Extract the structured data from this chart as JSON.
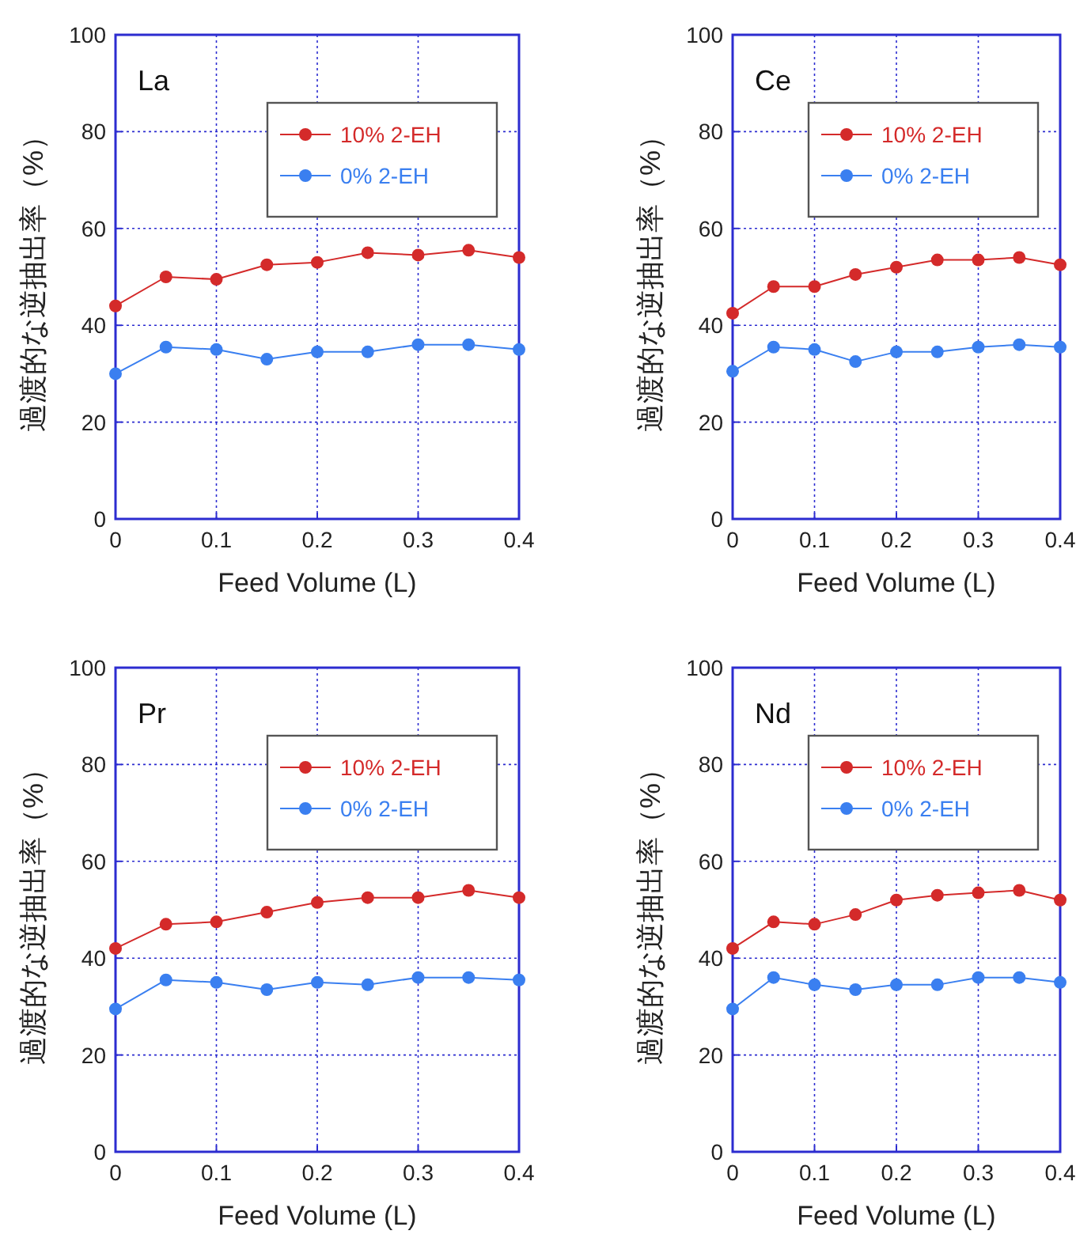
{
  "chart_data": [
    {
      "type": "line",
      "title": "La",
      "xlabel": "Feed Volume (L)",
      "ylabel": "過渡的な逆抽出率（%）",
      "x": [
        0,
        0.05,
        0.1,
        0.15,
        0.2,
        0.25,
        0.3,
        0.35,
        0.4
      ],
      "xlim": [
        0,
        0.4
      ],
      "xticks": [
        0,
        0.1,
        0.2,
        0.3,
        0.4
      ],
      "ylim": [
        0,
        100
      ],
      "yticks": [
        0,
        20,
        40,
        60,
        80,
        100
      ],
      "grid": true,
      "legend": "top right",
      "marker": "circle",
      "series": [
        {
          "name": "10% 2-EH",
          "color": "#d42a2a",
          "values": [
            44,
            50,
            49.5,
            52.5,
            53,
            55,
            54.5,
            55.5,
            54
          ]
        },
        {
          "name": "0% 2-EH",
          "color": "#3a7ff0",
          "values": [
            30,
            35.5,
            35,
            33,
            34.5,
            34.5,
            36,
            36,
            35
          ]
        }
      ]
    },
    {
      "type": "line",
      "title": "Ce",
      "xlabel": "Feed Volume (L)",
      "ylabel": "過渡的な逆抽出率（%）",
      "x": [
        0,
        0.05,
        0.1,
        0.15,
        0.2,
        0.25,
        0.3,
        0.35,
        0.4
      ],
      "xlim": [
        0,
        0.4
      ],
      "xticks": [
        0,
        0.1,
        0.2,
        0.3,
        0.4
      ],
      "ylim": [
        0,
        100
      ],
      "yticks": [
        0,
        20,
        40,
        60,
        80,
        100
      ],
      "grid": true,
      "legend": "top right",
      "marker": "circle",
      "series": [
        {
          "name": "10% 2-EH",
          "color": "#d42a2a",
          "values": [
            42.5,
            48,
            48,
            50.5,
            52,
            53.5,
            53.5,
            54,
            52.5
          ]
        },
        {
          "name": "0% 2-EH",
          "color": "#3a7ff0",
          "values": [
            30.5,
            35.5,
            35,
            32.5,
            34.5,
            34.5,
            35.5,
            36,
            35.5
          ]
        }
      ]
    },
    {
      "type": "line",
      "title": "Pr",
      "xlabel": "Feed Volume (L)",
      "ylabel": "過渡的な逆抽出率（%）",
      "x": [
        0,
        0.05,
        0.1,
        0.15,
        0.2,
        0.25,
        0.3,
        0.35,
        0.4
      ],
      "xlim": [
        0,
        0.4
      ],
      "xticks": [
        0,
        0.1,
        0.2,
        0.3,
        0.4
      ],
      "ylim": [
        0,
        100
      ],
      "yticks": [
        0,
        20,
        40,
        60,
        80,
        100
      ],
      "grid": true,
      "legend": "top right",
      "marker": "circle",
      "series": [
        {
          "name": "10% 2-EH",
          "color": "#d42a2a",
          "values": [
            42,
            47,
            47.5,
            49.5,
            51.5,
            52.5,
            52.5,
            54,
            52.5
          ]
        },
        {
          "name": "0% 2-EH",
          "color": "#3a7ff0",
          "values": [
            29.5,
            35.5,
            35,
            33.5,
            35,
            34.5,
            36,
            36,
            35.5
          ]
        }
      ]
    },
    {
      "type": "line",
      "title": "Nd",
      "xlabel": "Feed Volume (L)",
      "ylabel": "過渡的な逆抽出率（%）",
      "x": [
        0,
        0.05,
        0.1,
        0.15,
        0.2,
        0.25,
        0.3,
        0.35,
        0.4
      ],
      "xlim": [
        0,
        0.4
      ],
      "xticks": [
        0,
        0.1,
        0.2,
        0.3,
        0.4
      ],
      "ylim": [
        0,
        100
      ],
      "yticks": [
        0,
        20,
        40,
        60,
        80,
        100
      ],
      "grid": true,
      "legend": "top right",
      "marker": "circle",
      "series": [
        {
          "name": "10% 2-EH",
          "color": "#d42a2a",
          "values": [
            42,
            47.5,
            47,
            49,
            52,
            53,
            53.5,
            54,
            52
          ]
        },
        {
          "name": "0% 2-EH",
          "color": "#3a7ff0",
          "values": [
            29.5,
            36,
            34.5,
            33.5,
            34.5,
            34.5,
            36,
            36,
            35
          ]
        }
      ]
    }
  ]
}
